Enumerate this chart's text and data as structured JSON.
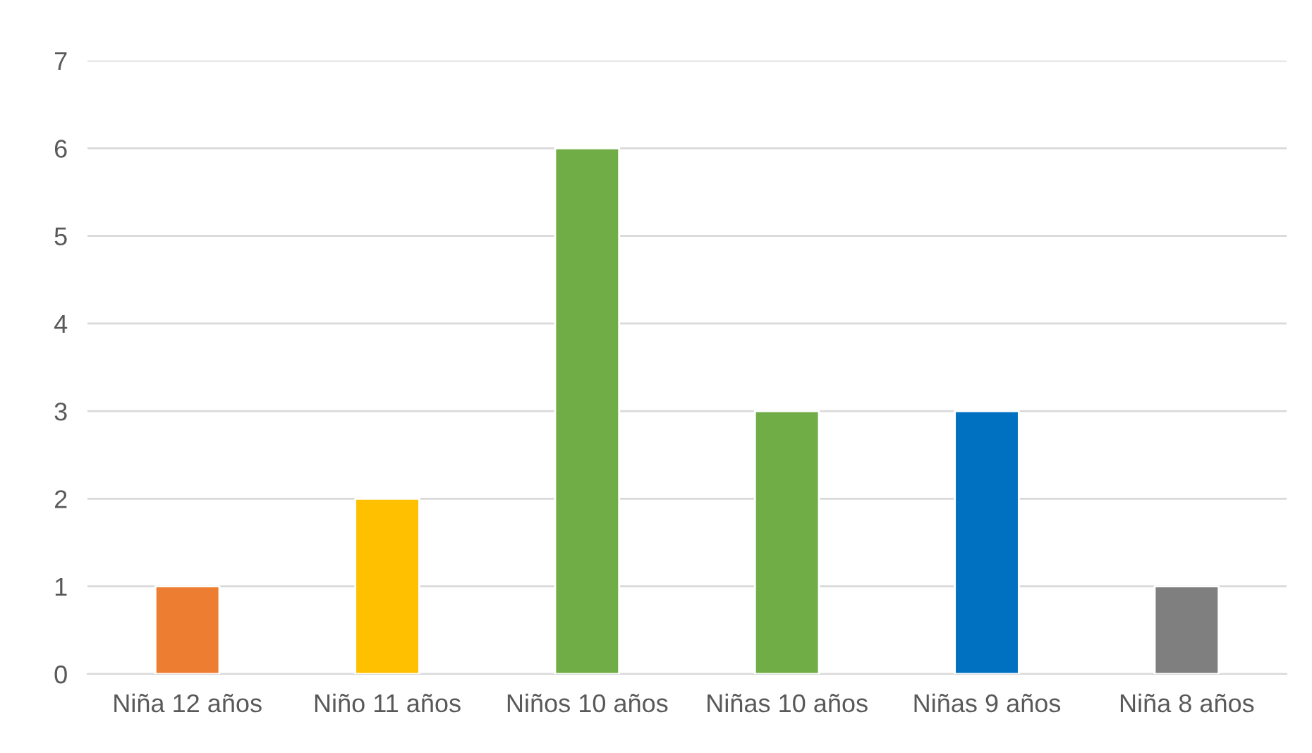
{
  "chart_data": {
    "type": "bar",
    "categories": [
      "Niña 12 años",
      "Niño 11 años",
      "Niños 10 años",
      "Niñas 10 años",
      "Niñas 9 años",
      "Niña 8 años"
    ],
    "values": [
      1,
      2,
      6,
      3,
      3,
      1
    ],
    "colors": [
      "#ed7d31",
      "#ffc000",
      "#70ad47",
      "#70ad47",
      "#0070c0",
      "#7f7f7f"
    ],
    "ylim": [
      0,
      7
    ],
    "yticks": [
      0,
      1,
      2,
      3,
      4,
      5,
      6,
      7
    ],
    "grid": "y",
    "legend": false
  }
}
